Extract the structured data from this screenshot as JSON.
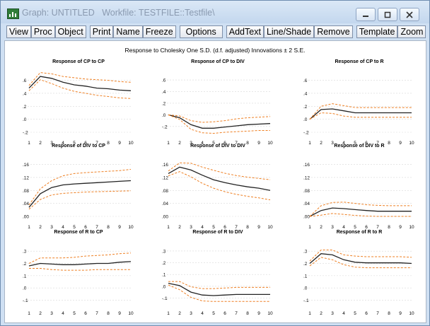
{
  "window": {
    "title_prefix": "Graph: UNTITLED",
    "workfile_label": "Workfile: TESTFILE::Testfile\\"
  },
  "toolbar": {
    "buttons": [
      "View",
      "Proc",
      "Object",
      "Print",
      "Name",
      "Freeze",
      "Options",
      "AddText",
      "Line/Shade",
      "Remove",
      "Template",
      "Zoom"
    ]
  },
  "graph": {
    "main_title": "Response to Cholesky One S.D. (d.f. adjusted) Innovations ± 2 S.E."
  },
  "chart_data": [
    {
      "type": "line",
      "title": "Response of CP to CP",
      "x": [
        1,
        2,
        3,
        4,
        5,
        6,
        7,
        8,
        9,
        10
      ],
      "ylim": [
        -0.2,
        0.65
      ],
      "yticks": [
        -0.2,
        0.0,
        0.2,
        0.4,
        0.6
      ],
      "ytick_labels": [
        "-.2",
        ".0",
        ".2",
        ".4",
        ".6"
      ],
      "series": [
        {
          "values": [
            0.48,
            0.66,
            0.63,
            0.57,
            0.53,
            0.51,
            0.48,
            0.47,
            0.45,
            0.44
          ]
        },
        {
          "values": [
            0.52,
            0.72,
            0.7,
            0.66,
            0.64,
            0.62,
            0.61,
            0.6,
            0.58,
            0.57
          ]
        },
        {
          "values": [
            0.44,
            0.61,
            0.55,
            0.48,
            0.43,
            0.4,
            0.37,
            0.35,
            0.33,
            0.32
          ]
        }
      ]
    },
    {
      "type": "line",
      "title": "Response of CP to DIV",
      "x": [
        1,
        2,
        3,
        4,
        5,
        6,
        7,
        8,
        9,
        10
      ],
      "ylim": [
        -0.3,
        0.65
      ],
      "yticks": [
        -0.2,
        0.0,
        0.2,
        0.4,
        0.6
      ],
      "ytick_labels": [
        "-.2",
        ".0",
        ".2",
        ".4",
        ".6"
      ],
      "series": [
        {
          "values": [
            0.0,
            -0.05,
            -0.17,
            -0.23,
            -0.23,
            -0.21,
            -0.19,
            -0.17,
            -0.16,
            -0.15
          ]
        },
        {
          "values": [
            0.0,
            -0.02,
            -0.1,
            -0.13,
            -0.12,
            -0.1,
            -0.07,
            -0.05,
            -0.04,
            -0.03
          ]
        },
        {
          "values": [
            0.0,
            -0.08,
            -0.25,
            -0.31,
            -0.32,
            -0.3,
            -0.29,
            -0.28,
            -0.27,
            -0.27
          ]
        }
      ]
    },
    {
      "type": "line",
      "title": "Response of CP to R",
      "x": [
        1,
        2,
        3,
        4,
        5,
        6,
        7,
        8,
        9,
        10
      ],
      "ylim": [
        -0.2,
        0.65
      ],
      "yticks": [
        -0.2,
        0.0,
        0.2,
        0.4,
        0.6
      ],
      "ytick_labels": [
        "-.2",
        ".0",
        ".2",
        ".4",
        ".6"
      ],
      "series": [
        {
          "values": [
            0.0,
            0.15,
            0.16,
            0.13,
            0.1,
            0.1,
            0.1,
            0.1,
            0.1,
            0.1
          ]
        },
        {
          "values": [
            0.0,
            0.2,
            0.24,
            0.21,
            0.18,
            0.18,
            0.18,
            0.18,
            0.18,
            0.18
          ]
        },
        {
          "values": [
            0.0,
            0.1,
            0.09,
            0.05,
            0.03,
            0.03,
            0.03,
            0.03,
            0.03,
            0.03
          ]
        }
      ]
    },
    {
      "type": "line",
      "title": "Response of DIV to CP",
      "x": [
        1,
        2,
        3,
        4,
        5,
        6,
        7,
        8,
        9,
        10
      ],
      "ylim": [
        0.0,
        0.17
      ],
      "yticks": [
        0.0,
        0.04,
        0.08,
        0.12,
        0.16
      ],
      "ytick_labels": [
        ".00",
        ".04",
        ".08",
        ".12",
        ".16"
      ],
      "series": [
        {
          "values": [
            0.028,
            0.07,
            0.089,
            0.097,
            0.1,
            0.102,
            0.104,
            0.106,
            0.108,
            0.11
          ]
        },
        {
          "values": [
            0.035,
            0.085,
            0.11,
            0.125,
            0.132,
            0.135,
            0.137,
            0.139,
            0.141,
            0.145
          ]
        },
        {
          "values": [
            0.022,
            0.052,
            0.066,
            0.071,
            0.073,
            0.075,
            0.076,
            0.077,
            0.078,
            0.079
          ]
        }
      ]
    },
    {
      "type": "line",
      "title": "Response of DIV to DIV",
      "x": [
        1,
        2,
        3,
        4,
        5,
        6,
        7,
        8,
        9,
        10
      ],
      "ylim": [
        0.0,
        0.17
      ],
      "yticks": [
        0.0,
        0.04,
        0.08,
        0.12,
        0.16
      ],
      "ytick_labels": [
        ".00",
        ".04",
        ".08",
        ".12",
        ".16"
      ],
      "series": [
        {
          "values": [
            0.132,
            0.152,
            0.143,
            0.127,
            0.113,
            0.104,
            0.097,
            0.091,
            0.087,
            0.08
          ]
        },
        {
          "values": [
            0.14,
            0.165,
            0.164,
            0.152,
            0.142,
            0.133,
            0.126,
            0.121,
            0.117,
            0.113
          ]
        },
        {
          "values": [
            0.125,
            0.138,
            0.122,
            0.102,
            0.087,
            0.076,
            0.068,
            0.062,
            0.057,
            0.051
          ]
        }
      ]
    },
    {
      "type": "line",
      "title": "Response of DIV to R",
      "x": [
        1,
        2,
        3,
        4,
        5,
        6,
        7,
        8,
        9,
        10
      ],
      "ylim": [
        0.0,
        0.17
      ],
      "yticks": [
        0.0,
        0.04,
        0.08,
        0.12,
        0.16
      ],
      "ytick_labels": [
        ".00",
        ".04",
        ".08",
        ".12",
        ".16"
      ],
      "series": [
        {
          "values": [
            0.0,
            0.018,
            0.026,
            0.024,
            0.021,
            0.018,
            0.016,
            0.016,
            0.016,
            0.016
          ]
        },
        {
          "values": [
            0.0,
            0.033,
            0.043,
            0.044,
            0.04,
            0.036,
            0.034,
            0.033,
            0.033,
            0.033
          ]
        },
        {
          "values": [
            0.0,
            0.004,
            0.009,
            0.006,
            0.003,
            0.001,
            0.0,
            0.0,
            0.0,
            0.0
          ]
        }
      ]
    },
    {
      "type": "line",
      "title": "Response of R to CP",
      "x": [
        1,
        2,
        3,
        4,
        5,
        6,
        7,
        8,
        9,
        10
      ],
      "ylim": [
        -0.12,
        0.33
      ],
      "yticks": [
        -0.1,
        0.0,
        0.1,
        0.2,
        0.3
      ],
      "ytick_labels": [
        "-.1",
        ".0",
        ".1",
        ".2",
        ".3"
      ],
      "series": [
        {
          "values": [
            0.18,
            0.2,
            0.195,
            0.19,
            0.19,
            0.195,
            0.2,
            0.2,
            0.21,
            0.215
          ]
        },
        {
          "values": [
            0.2,
            0.245,
            0.245,
            0.245,
            0.25,
            0.26,
            0.265,
            0.27,
            0.28,
            0.285
          ]
        },
        {
          "values": [
            0.16,
            0.16,
            0.15,
            0.145,
            0.145,
            0.145,
            0.15,
            0.15,
            0.15,
            0.15
          ]
        }
      ]
    },
    {
      "type": "line",
      "title": "Response of R to DIV",
      "x": [
        1,
        2,
        3,
        4,
        5,
        6,
        7,
        8,
        9,
        10
      ],
      "ylim": [
        -0.14,
        0.33
      ],
      "yticks": [
        -0.1,
        0.0,
        0.1,
        0.2,
        0.3
      ],
      "ytick_labels": [
        "-.1",
        ".0",
        ".1",
        ".2",
        ".3"
      ],
      "series": [
        {
          "values": [
            0.025,
            0.005,
            -0.05,
            -0.075,
            -0.08,
            -0.075,
            -0.07,
            -0.07,
            -0.07,
            -0.07
          ]
        },
        {
          "values": [
            0.04,
            0.04,
            -0.005,
            -0.02,
            -0.02,
            -0.015,
            -0.01,
            -0.01,
            -0.01,
            -0.01
          ]
        },
        {
          "values": [
            0.01,
            -0.03,
            -0.095,
            -0.125,
            -0.13,
            -0.13,
            -0.13,
            -0.13,
            -0.13,
            -0.13
          ]
        }
      ]
    },
    {
      "type": "line",
      "title": "Response of R to R",
      "x": [
        1,
        2,
        3,
        4,
        5,
        6,
        7,
        8,
        9,
        10
      ],
      "ylim": [
        -0.12,
        0.33
      ],
      "yticks": [
        -0.1,
        0.0,
        0.1,
        0.2,
        0.3
      ],
      "ytick_labels": [
        "-.1",
        ".0",
        ".1",
        ".2",
        ".3"
      ],
      "series": [
        {
          "values": [
            0.2,
            0.28,
            0.27,
            0.23,
            0.21,
            0.205,
            0.205,
            0.205,
            0.205,
            0.2
          ]
        },
        {
          "values": [
            0.22,
            0.31,
            0.31,
            0.27,
            0.26,
            0.255,
            0.255,
            0.255,
            0.255,
            0.25
          ]
        },
        {
          "values": [
            0.18,
            0.25,
            0.23,
            0.19,
            0.17,
            0.165,
            0.165,
            0.165,
            0.165,
            0.165
          ]
        }
      ]
    }
  ]
}
